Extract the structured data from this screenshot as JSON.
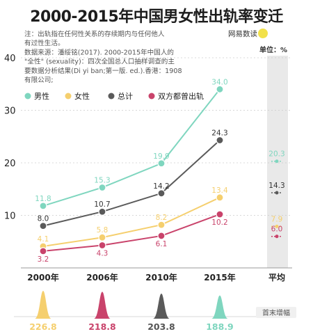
{
  "title": "2000-2015年中国男女性出轨率变迁",
  "notes": [
    "注：出轨指在任何性关系的存续期内与任何他人",
    "有过性生活。",
    "数据来源：潘绥铭(2017). 2000-2015年中国人的",
    "\"全性\" (sexuality)：四次全国总人口抽样调查的主",
    "要数据分析结果(Di yi ban;第一版. ed.).香港：1908",
    "有限公司;"
  ],
  "brand": "网易数读",
  "unit": "单位：%",
  "watermark_tag": "首末增幅",
  "colors": {
    "male": "#7fd6bf",
    "female": "#f5cf6e",
    "total": "#5a5a5a",
    "both": "#c9436b",
    "avg_band": "#e9e9e9",
    "grid": "#cccccc"
  },
  "chart_data": {
    "type": "line",
    "categories": [
      "2000年",
      "2006年",
      "2010年",
      "2015年"
    ],
    "avg_label": "平均",
    "ylim": [
      0,
      40
    ],
    "yticks": [
      10,
      20,
      30,
      40
    ],
    "series": [
      {
        "key": "male",
        "name": "男性",
        "values": [
          11.8,
          15.3,
          19.9,
          34.0
        ],
        "avg": 20.3,
        "growth": 188.9
      },
      {
        "key": "female",
        "name": "女性",
        "values": [
          4.1,
          5.8,
          8.2,
          13.4
        ],
        "avg": 7.9,
        "growth": 226.8
      },
      {
        "key": "total",
        "name": "总计",
        "values": [
          8.0,
          10.7,
          14.2,
          24.3
        ],
        "avg": 14.3,
        "growth": 203.8
      },
      {
        "key": "both",
        "name": "双方都曾出轨",
        "values": [
          3.2,
          4.3,
          6.1,
          10.2
        ],
        "avg": 6.0,
        "growth": 218.8
      }
    ],
    "bottom_growth_order": [
      "female",
      "both",
      "total",
      "male"
    ]
  }
}
